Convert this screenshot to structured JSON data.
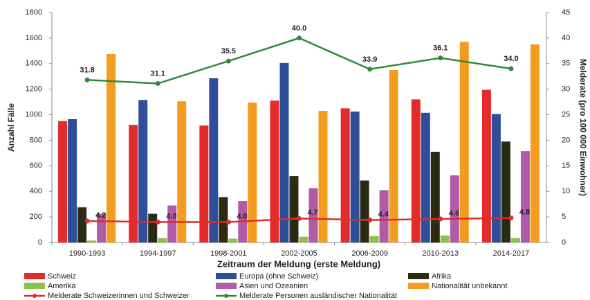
{
  "chart_data": {
    "type": "bar",
    "categories": [
      "1990-1993",
      "1994-1997",
      "1998-2001",
      "2002-2005",
      "2006-2009",
      "2010-2013",
      "2014-2017"
    ],
    "xlabel": "Zeitraum der Meldung (erste Meldung)",
    "ylabel": "Anzahl Fälle",
    "y2label": "Melderate (pro 100 000 Einwohner)",
    "ylim": [
      0,
      1800
    ],
    "yticks": [
      0,
      200,
      400,
      600,
      800,
      1000,
      1200,
      1400,
      1600,
      1800
    ],
    "y2lim": [
      0,
      45
    ],
    "y2ticks": [
      0,
      5,
      10,
      15,
      20,
      25,
      30,
      35,
      40,
      45
    ],
    "legend": "bottom",
    "series": [
      {
        "name": "Schweiz",
        "color": "#e32b2b",
        "values": [
          950,
          920,
          915,
          1110,
          1050,
          1120,
          1195
        ]
      },
      {
        "name": "Europa (ohne Schweiz)",
        "color": "#2e4e9a",
        "values": [
          965,
          1115,
          1285,
          1405,
          1025,
          1015,
          1005
        ]
      },
      {
        "name": "Afrika",
        "color": "#2b2b14",
        "values": [
          275,
          225,
          355,
          520,
          485,
          710,
          790
        ]
      },
      {
        "name": "Amerika",
        "color": "#8bc34a",
        "values": [
          15,
          35,
          30,
          45,
          50,
          55,
          35
        ]
      },
      {
        "name": "Asien und Ozeanien",
        "color": "#b05aa8",
        "values": [
          225,
          290,
          325,
          425,
          410,
          525,
          715
        ]
      },
      {
        "name": "Nationalität unbekannt",
        "color": "#f39c1f",
        "values": [
          1475,
          1105,
          1095,
          1030,
          1350,
          1570,
          1550
        ]
      },
      {
        "name": "Melderate Schweizerinnen und Schweizer",
        "color": "#e02b2b",
        "type": "line",
        "axis": "y2",
        "values": [
          4.2,
          4.0,
          4.0,
          4.7,
          4.4,
          4.6,
          4.8
        ],
        "value_labels": [
          "4.2",
          "4.0",
          "4.0",
          "4.7",
          "4.4",
          "4.6",
          "4.8"
        ]
      },
      {
        "name": "Melderate Personen ausländischer Nationalität",
        "color": "#2e8b3a",
        "type": "line",
        "axis": "y2",
        "values": [
          31.8,
          31.1,
          35.5,
          40.0,
          33.9,
          36.1,
          34.0
        ],
        "value_labels": [
          "31.8",
          "31.1",
          "35.5",
          "40.0",
          "33.9",
          "36.1",
          "34.0"
        ]
      }
    ]
  }
}
